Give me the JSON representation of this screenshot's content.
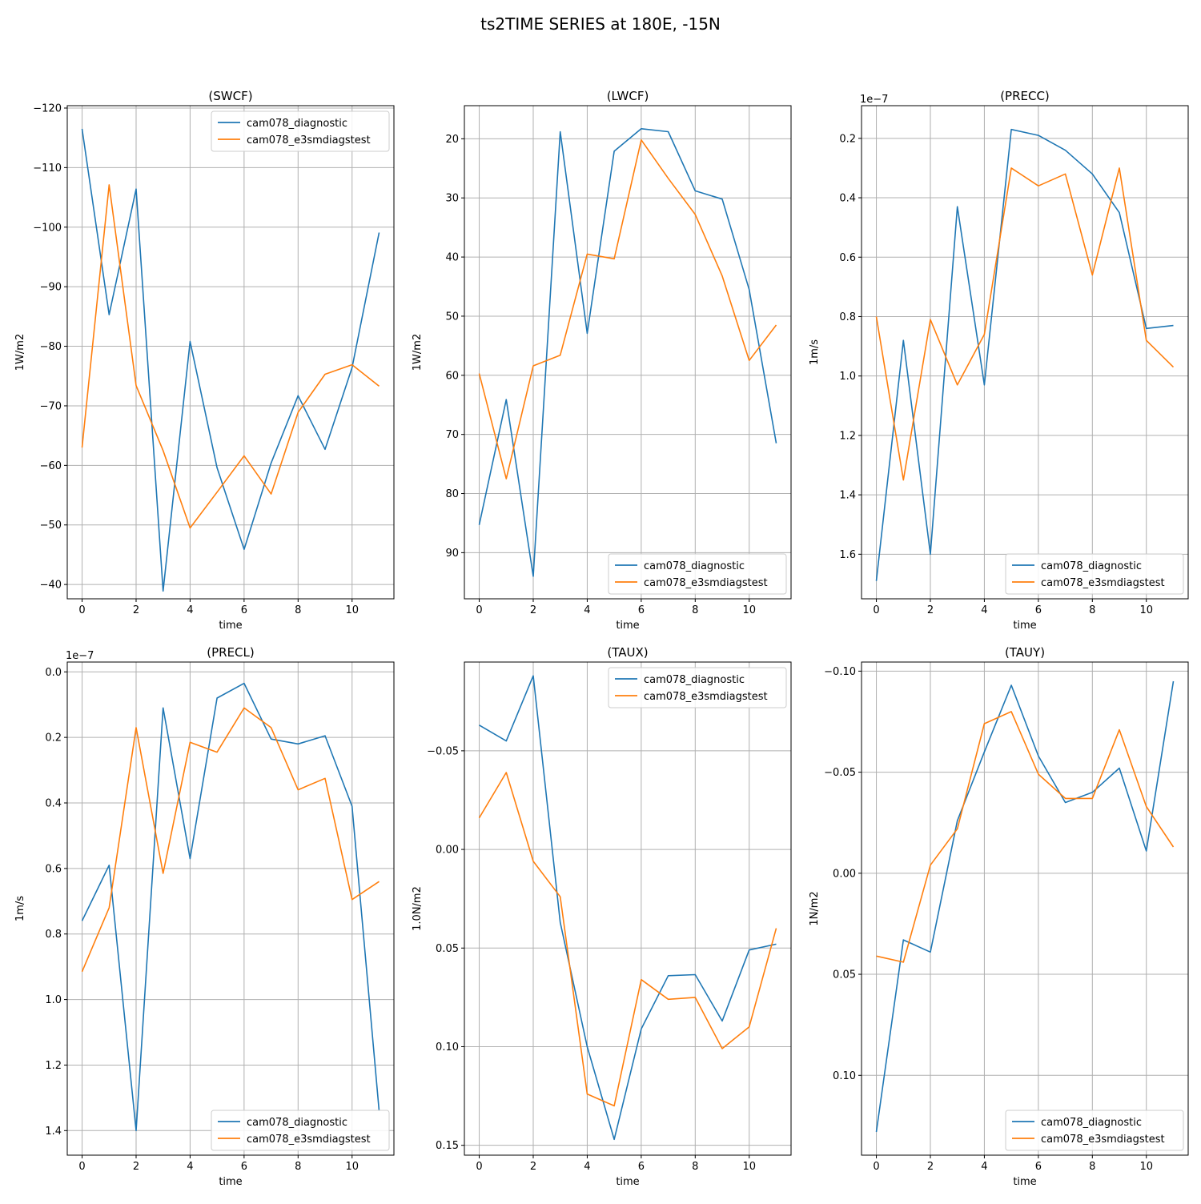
{
  "suptitle": "ts2TIME SERIES at 180E, -15N",
  "colors": {
    "series_1": "#1f77b4",
    "series_2": "#ff7f0e",
    "grid": "#b0b0b0"
  },
  "chart_data": [
    {
      "type": "line",
      "title": "(SWCF)",
      "xlabel": "time",
      "ylabel": "1W/m2",
      "axis_scale_note": "",
      "xlim": [
        -0.55,
        11.55
      ],
      "ylim": [
        -37.6,
        -120.4
      ],
      "y_inverted": true,
      "xticks": [
        0,
        2,
        4,
        6,
        8,
        10
      ],
      "xtick_labels": [
        "0",
        "2",
        "4",
        "6",
        "8",
        "10"
      ],
      "yticks": [
        -120,
        -110,
        -100,
        -90,
        -80,
        -70,
        -60,
        -50,
        -40
      ],
      "ytick_labels": [
        "−120",
        "−110",
        "−100",
        "−90",
        "−80",
        "−70",
        "−60",
        "−50",
        "−40"
      ],
      "grid": true,
      "legend_position": "upper right",
      "x": [
        0,
        1,
        2,
        3,
        4,
        5,
        6,
        7,
        8,
        9,
        10,
        11
      ],
      "series": [
        {
          "name": "cam078_diagnostic",
          "values": [
            -116.5,
            -85.3,
            -106.4,
            -38.9,
            -80.8,
            -59.6,
            -45.9,
            -60.4,
            -71.7,
            -62.7,
            -76.4,
            -99.1
          ]
        },
        {
          "name": "cam078_e3smdiagstest",
          "values": [
            -63,
            -107.1,
            -73.4,
            -62.5,
            -49.5,
            -55.5,
            -61.6,
            -55.2,
            -68.9,
            -75.3,
            -76.9,
            -73.3
          ]
        }
      ]
    },
    {
      "type": "line",
      "title": "(LWCF)",
      "xlabel": "time",
      "ylabel": "1W/m2",
      "axis_scale_note": "",
      "xlim": [
        -0.55,
        11.55
      ],
      "ylim": [
        97.8,
        14.4
      ],
      "y_inverted": true,
      "xticks": [
        0,
        2,
        4,
        6,
        8,
        10
      ],
      "xtick_labels": [
        "0",
        "2",
        "4",
        "6",
        "8",
        "10"
      ],
      "yticks": [
        20,
        30,
        40,
        50,
        60,
        70,
        80,
        90
      ],
      "ytick_labels": [
        "20",
        "30",
        "40",
        "50",
        "60",
        "70",
        "80",
        "90"
      ],
      "grid": true,
      "legend_position": "lower right",
      "x": [
        0,
        1,
        2,
        3,
        4,
        5,
        6,
        7,
        8,
        9,
        10,
        11
      ],
      "series": [
        {
          "name": "cam078_diagnostic",
          "values": [
            85.3,
            64.1,
            94,
            18.8,
            52.9,
            22.1,
            18.3,
            18.8,
            28.8,
            30.2,
            45.5,
            71.5
          ]
        },
        {
          "name": "cam078_e3smdiagstest",
          "values": [
            59.7,
            77.5,
            58.4,
            56.6,
            39.5,
            40.3,
            20.2,
            26.7,
            32.8,
            43.2,
            57.5,
            51.5
          ]
        }
      ]
    },
    {
      "type": "line",
      "title": "(PRECC)",
      "xlabel": "time",
      "ylabel": "1m/s",
      "axis_scale_note": "1e−7",
      "xlim": [
        -0.55,
        11.55
      ],
      "ylim": [
        1.75,
        0.09
      ],
      "y_inverted": true,
      "xticks": [
        0,
        2,
        4,
        6,
        8,
        10
      ],
      "xtick_labels": [
        "0",
        "2",
        "4",
        "6",
        "8",
        "10"
      ],
      "yticks": [
        0.2,
        0.4,
        0.6,
        0.8,
        1.0,
        1.2,
        1.4,
        1.6
      ],
      "ytick_labels": [
        "0.2",
        "0.4",
        "0.6",
        "0.8",
        "1.0",
        "1.2",
        "1.4",
        "1.6"
      ],
      "grid": true,
      "legend_position": "lower right",
      "x": [
        0,
        1,
        2,
        3,
        4,
        5,
        6,
        7,
        8,
        9,
        10,
        11
      ],
      "series": [
        {
          "name": "cam078_diagnostic",
          "values": [
            1.69,
            0.88,
            1.6,
            0.43,
            1.03,
            0.17,
            0.19,
            0.24,
            0.32,
            0.45,
            0.84,
            0.83
          ]
        },
        {
          "name": "cam078_e3smdiagstest",
          "values": [
            0.8,
            1.35,
            0.81,
            1.03,
            0.86,
            0.3,
            0.36,
            0.32,
            0.66,
            0.3,
            0.88,
            0.97
          ]
        }
      ]
    },
    {
      "type": "line",
      "title": "(PRECL)",
      "xlabel": "time",
      "ylabel": "1m/s",
      "axis_scale_note": "1e−7",
      "xlim": [
        -0.55,
        11.55
      ],
      "ylim": [
        1.475,
        -0.03
      ],
      "y_inverted": true,
      "xticks": [
        0,
        2,
        4,
        6,
        8,
        10
      ],
      "xtick_labels": [
        "0",
        "2",
        "4",
        "6",
        "8",
        "10"
      ],
      "yticks": [
        0.0,
        0.2,
        0.4,
        0.6,
        0.8,
        1.0,
        1.2,
        1.4
      ],
      "ytick_labels": [
        "0.0",
        "0.2",
        "0.4",
        "0.6",
        "0.8",
        "1.0",
        "1.2",
        "1.4"
      ],
      "grid": true,
      "legend_position": "lower right",
      "x": [
        0,
        1,
        2,
        3,
        4,
        5,
        6,
        7,
        8,
        9,
        10,
        11
      ],
      "series": [
        {
          "name": "cam078_diagnostic",
          "values": [
            0.76,
            0.59,
            1.4,
            0.11,
            0.57,
            0.08,
            0.035,
            0.205,
            0.22,
            0.195,
            0.41,
            1.34
          ]
        },
        {
          "name": "cam078_e3smdiagstest",
          "values": [
            0.915,
            0.72,
            0.17,
            0.615,
            0.215,
            0.245,
            0.11,
            0.17,
            0.36,
            0.325,
            0.695,
            0.64
          ]
        }
      ]
    },
    {
      "type": "line",
      "title": "(TAUX)",
      "xlabel": "time",
      "ylabel": "1.0N/m2",
      "axis_scale_note": "",
      "xlim": [
        -0.55,
        11.55
      ],
      "ylim": [
        0.155,
        -0.095
      ],
      "y_inverted": true,
      "xticks": [
        0,
        2,
        4,
        6,
        8,
        10
      ],
      "xtick_labels": [
        "0",
        "2",
        "4",
        "6",
        "8",
        "10"
      ],
      "yticks": [
        -0.05,
        0.0,
        0.05,
        0.1,
        0.15
      ],
      "ytick_labels": [
        "−0.05",
        "0.00",
        "0.05",
        "0.10",
        "0.15"
      ],
      "grid": true,
      "legend_position": "upper right",
      "x": [
        0,
        1,
        2,
        3,
        4,
        5,
        6,
        7,
        8,
        9,
        10,
        11
      ],
      "series": [
        {
          "name": "cam078_diagnostic",
          "values": [
            -0.063,
            -0.055,
            -0.088,
            0.037,
            0.1,
            0.147,
            0.091,
            0.064,
            0.0635,
            0.087,
            0.051,
            0.048
          ]
        },
        {
          "name": "cam078_e3smdiagstest",
          "values": [
            -0.016,
            -0.039,
            0.006,
            0.024,
            0.124,
            0.13,
            0.066,
            0.076,
            0.075,
            0.101,
            0.09,
            0.04
          ]
        }
      ]
    },
    {
      "type": "line",
      "title": "(TAUY)",
      "xlabel": "time",
      "ylabel": "1N/m2",
      "axis_scale_note": "",
      "xlim": [
        -0.55,
        11.55
      ],
      "ylim": [
        0.1395,
        -0.1045
      ],
      "y_inverted": true,
      "xticks": [
        0,
        2,
        4,
        6,
        8,
        10
      ],
      "xtick_labels": [
        "0",
        "2",
        "4",
        "6",
        "8",
        "10"
      ],
      "yticks": [
        -0.1,
        -0.05,
        0.0,
        0.05,
        0.1
      ],
      "ytick_labels": [
        "−0.10",
        "−0.05",
        "0.00",
        "0.05",
        "0.10"
      ],
      "grid": true,
      "legend_position": "lower right",
      "x": [
        0,
        1,
        2,
        3,
        4,
        5,
        6,
        7,
        8,
        9,
        10,
        11
      ],
      "series": [
        {
          "name": "cam078_diagnostic",
          "values": [
            0.128,
            0.033,
            0.039,
            -0.026,
            -0.06,
            -0.093,
            -0.058,
            -0.035,
            -0.04,
            -0.052,
            -0.011,
            -0.095
          ]
        },
        {
          "name": "cam078_e3smdiagstest",
          "values": [
            0.041,
            0.044,
            -0.004,
            -0.022,
            -0.074,
            -0.08,
            -0.049,
            -0.037,
            -0.037,
            -0.071,
            -0.033,
            -0.013
          ]
        }
      ]
    }
  ]
}
